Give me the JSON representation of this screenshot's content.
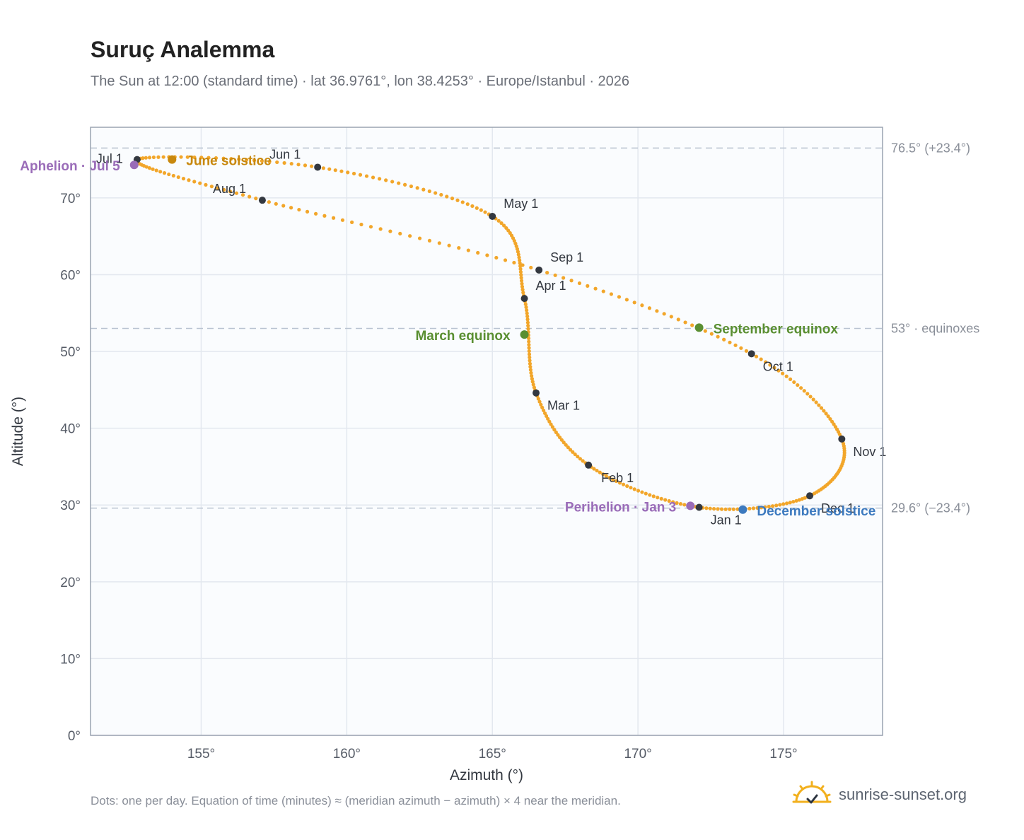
{
  "header": {
    "title": "Suruç Analemma",
    "subtitle": "The Sun at 12:00 (standard time) · lat 36.9761°, lon 38.4253° · Europe/Istanbul · 2026"
  },
  "footer": {
    "note": "Dots: one per day. Equation of time (minutes) ≈ (meridian azimuth − azimuth) × 4 near the meridian.",
    "brand": "sunrise-sunset.org"
  },
  "colors": {
    "path": "#f2a62a",
    "month_marker": "#333840",
    "equinox": "#5a8f32",
    "solstice_june": "#c8880e",
    "solstice_december": "#3d7abf",
    "apsis": "#9a6cb8",
    "reference_line": "#b9c3d1",
    "plot_background": "#fafcfe",
    "grid": "#e3e8ef"
  },
  "chart_data": {
    "type": "scatter",
    "xlabel": "Azimuth (°)",
    "ylabel": "Altitude (°)",
    "xlim": [
      151.2,
      178.4
    ],
    "ylim": [
      0,
      79.2
    ],
    "xticks": [
      155,
      160,
      165,
      170,
      175
    ],
    "yticks": [
      0,
      10,
      20,
      30,
      40,
      50,
      60,
      70
    ],
    "x_tick_labels": [
      "155°",
      "160°",
      "165°",
      "170°",
      "175°"
    ],
    "y_tick_labels": [
      "0°",
      "10°",
      "20°",
      "30°",
      "40°",
      "50°",
      "60°",
      "70°"
    ],
    "grid": true,
    "reference_lines": [
      {
        "altitude": 76.5,
        "label": "76.5° (+23.4°)"
      },
      {
        "altitude": 53.0,
        "label": "53° · equinoxes"
      },
      {
        "altitude": 29.6,
        "label": "29.6° (−23.4°)"
      }
    ],
    "month_markers": [
      {
        "label": "Jan 1",
        "azimuth": 172.1,
        "altitude": 29.7
      },
      {
        "label": "Feb 1",
        "azimuth": 168.3,
        "altitude": 35.2
      },
      {
        "label": "Mar 1",
        "azimuth": 166.5,
        "altitude": 44.6
      },
      {
        "label": "Apr 1",
        "azimuth": 166.1,
        "altitude": 56.9
      },
      {
        "label": "May 1",
        "azimuth": 165.0,
        "altitude": 67.6
      },
      {
        "label": "Jun 1",
        "azimuth": 159.0,
        "altitude": 74.0
      },
      {
        "label": "Jul 1",
        "azimuth": 152.8,
        "altitude": 75.0
      },
      {
        "label": "Aug 1",
        "azimuth": 157.1,
        "altitude": 69.7
      },
      {
        "label": "Sep 1",
        "azimuth": 166.6,
        "altitude": 60.6
      },
      {
        "label": "Oct 1",
        "azimuth": 173.9,
        "altitude": 49.7
      },
      {
        "label": "Nov 1",
        "azimuth": 177.0,
        "altitude": 38.6
      },
      {
        "label": "Dec 1",
        "azimuth": 175.9,
        "altitude": 31.2
      }
    ],
    "events": [
      {
        "label": "March equinox",
        "azimuth": 166.1,
        "altitude": 52.2,
        "kind": "equinox"
      },
      {
        "label": "June solstice",
        "azimuth": 154.0,
        "altitude": 75.0,
        "kind": "solstice_june"
      },
      {
        "label": "September equinox",
        "azimuth": 172.1,
        "altitude": 53.1,
        "kind": "equinox"
      },
      {
        "label": "December solstice",
        "azimuth": 173.6,
        "altitude": 29.4,
        "kind": "solstice_december"
      },
      {
        "label": "Perihelion · Jan 3",
        "azimuth": 171.8,
        "altitude": 29.9,
        "kind": "apsis"
      },
      {
        "label": "Aphelion · Jul 5",
        "azimuth": 152.7,
        "altitude": 74.3,
        "kind": "apsis"
      }
    ]
  }
}
